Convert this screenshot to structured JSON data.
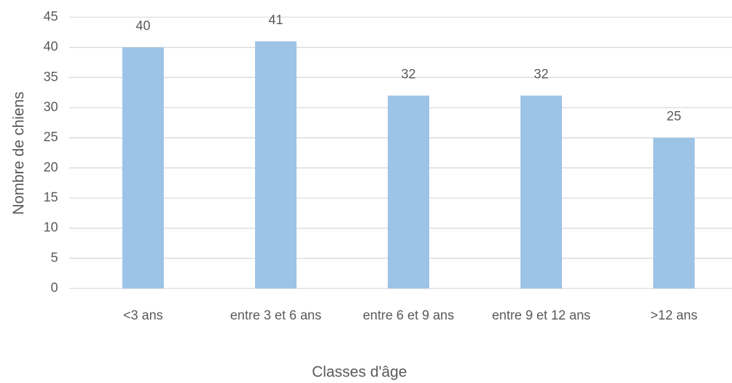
{
  "chart_data": {
    "type": "bar",
    "categories": [
      "<3 ans",
      "entre 3 et 6 ans",
      "entre 6 et 9 ans",
      "entre 9 et 12 ans",
      ">12 ans"
    ],
    "values": [
      40,
      41,
      32,
      32,
      25
    ],
    "color": "#9dc3e6",
    "x_label": "Classes d'âge",
    "y_label": "Nombre de chiens",
    "ylim": [
      0,
      45
    ],
    "yticks": [
      0,
      5,
      10,
      15,
      20,
      25,
      30,
      35,
      40,
      45
    ],
    "grid": true
  }
}
